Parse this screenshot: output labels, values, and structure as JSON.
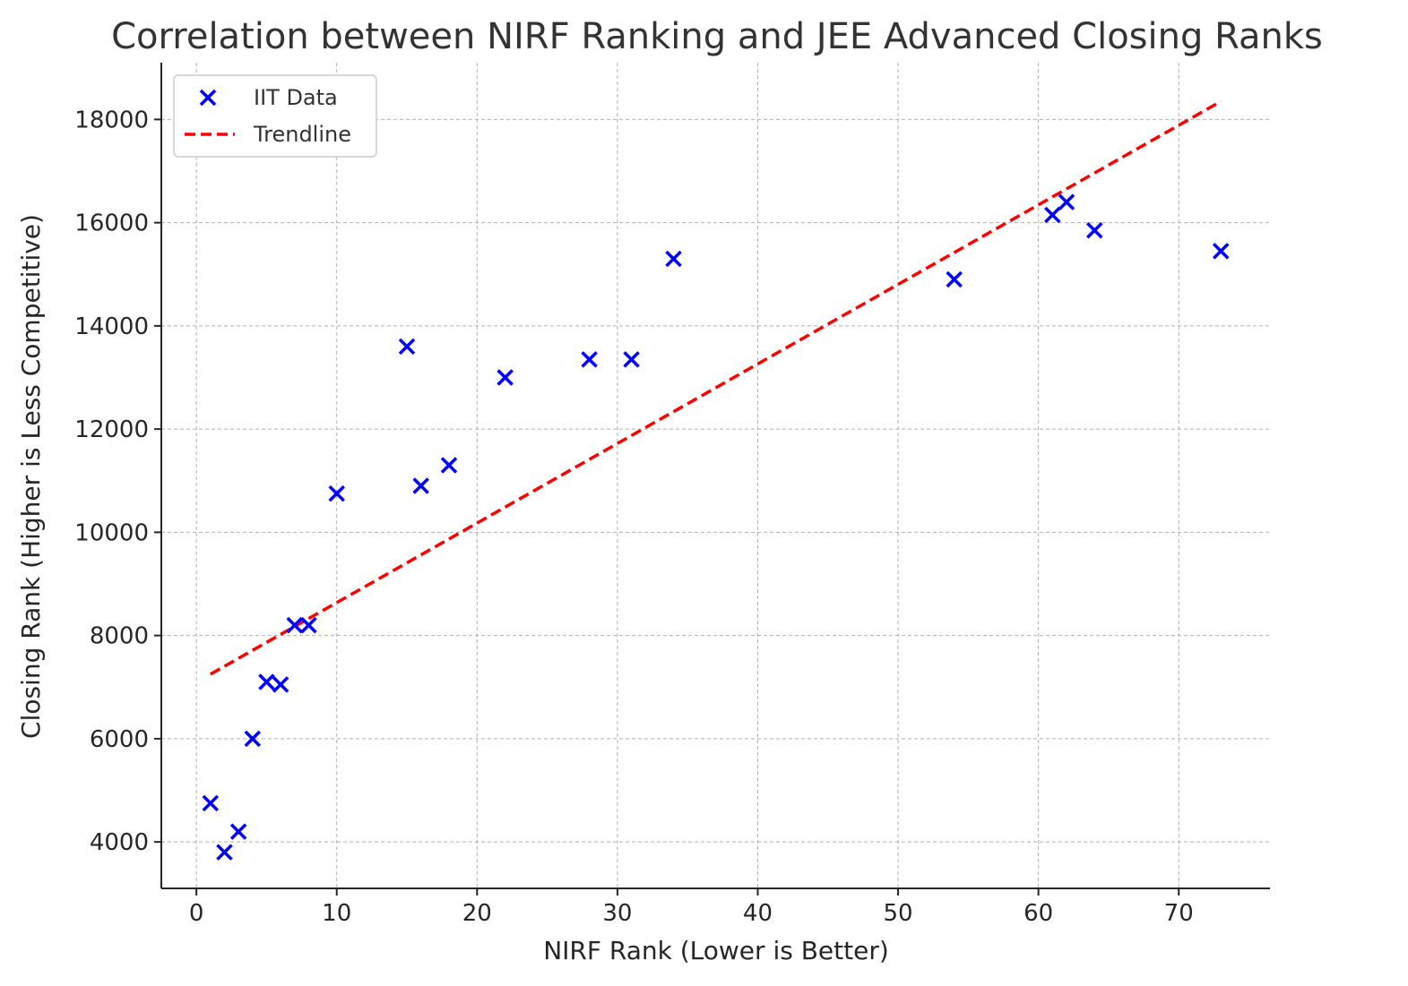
{
  "chart_data": {
    "type": "scatter",
    "title": "Correlation between NIRF Ranking and JEE Advanced Closing Ranks",
    "xlabel": "NIRF Rank (Lower is Better)",
    "ylabel": "Closing Rank (Higher is Less Competitive)",
    "xlim": [
      -2.5,
      76.5
    ],
    "ylim": [
      3100,
      19100
    ],
    "xticks": [
      0,
      10,
      20,
      30,
      40,
      50,
      60,
      70
    ],
    "yticks": [
      4000,
      6000,
      8000,
      10000,
      12000,
      14000,
      16000,
      18000
    ],
    "grid": true,
    "legend_position": "top-left",
    "series": [
      {
        "name": "IIT Data",
        "marker": "x",
        "color": "#0000ff",
        "points": [
          {
            "x": 1,
            "y": 4750
          },
          {
            "x": 2,
            "y": 3800
          },
          {
            "x": 3,
            "y": 4200
          },
          {
            "x": 4,
            "y": 6000
          },
          {
            "x": 5,
            "y": 7100
          },
          {
            "x": 6,
            "y": 7050
          },
          {
            "x": 7,
            "y": 8200
          },
          {
            "x": 8,
            "y": 8200
          },
          {
            "x": 10,
            "y": 10750
          },
          {
            "x": 15,
            "y": 13600
          },
          {
            "x": 16,
            "y": 10900
          },
          {
            "x": 18,
            "y": 11300
          },
          {
            "x": 22,
            "y": 13000
          },
          {
            "x": 28,
            "y": 13350
          },
          {
            "x": 31,
            "y": 13350
          },
          {
            "x": 34,
            "y": 15300
          },
          {
            "x": 54,
            "y": 14900
          },
          {
            "x": 61,
            "y": 16150
          },
          {
            "x": 62,
            "y": 16400
          },
          {
            "x": 64,
            "y": 15850
          },
          {
            "x": 73,
            "y": 15450
          }
        ]
      },
      {
        "name": "Trendline",
        "type": "line",
        "style": "dashed",
        "color": "#ff0000",
        "points": [
          {
            "x": 1,
            "y": 7250
          },
          {
            "x": 73,
            "y": 18350
          }
        ]
      }
    ]
  }
}
